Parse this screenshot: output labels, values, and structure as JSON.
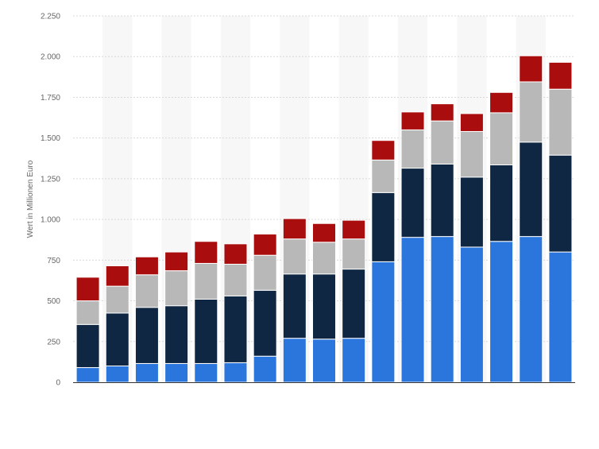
{
  "chart_data": {
    "type": "bar",
    "stacked": true,
    "ylabel": "Wert in Millionen Euro",
    "ylim": [
      0,
      2250
    ],
    "yticks": [
      0,
      250,
      500,
      750,
      1000,
      1250,
      1500,
      1750,
      2000,
      2250
    ],
    "ytick_labels": [
      "0",
      "250",
      "500",
      "750",
      "1.000",
      "1.250",
      "1.500",
      "1.750",
      "2.000",
      "2.250"
    ],
    "grid": true,
    "alternate_column_shading": true,
    "bar_count": 17,
    "series": [
      {
        "color": "#2a76dd",
        "values": [
          90,
          100,
          115,
          115,
          115,
          120,
          160,
          270,
          265,
          270,
          740,
          890,
          895,
          830,
          865,
          895,
          800
        ]
      },
      {
        "color": "#0f2742",
        "values": [
          265,
          325,
          345,
          355,
          395,
          410,
          405,
          395,
          400,
          425,
          425,
          425,
          445,
          430,
          470,
          580,
          595
        ]
      },
      {
        "color": "#b8b8b8",
        "values": [
          145,
          165,
          200,
          215,
          220,
          195,
          215,
          215,
          195,
          185,
          200,
          235,
          265,
          280,
          320,
          370,
          405
        ]
      },
      {
        "color": "#a90d0d",
        "values": [
          145,
          125,
          110,
          115,
          135,
          125,
          130,
          125,
          115,
          115,
          120,
          110,
          105,
          110,
          125,
          160,
          165
        ]
      }
    ]
  }
}
